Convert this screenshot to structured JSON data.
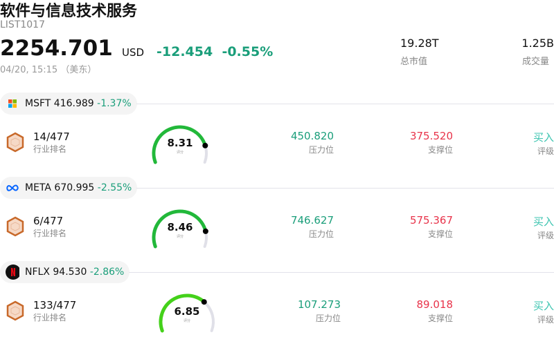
{
  "header": {
    "title": "软件与信息技术服务",
    "code": "LIST1017",
    "price": "2254.701",
    "currency": "USD",
    "change": "-12.454",
    "change_pct": "-0.55%",
    "time": "04/20, 15:15 （美东）",
    "market_cap": "19.28T",
    "market_cap_label": "总市值",
    "volume": "1.25B",
    "volume_label": "成交量"
  },
  "stocks": [
    {
      "ticker": "MSFT",
      "price": "416.989",
      "change_pct": "-1.37%",
      "logo": "microsoft-logo",
      "rank": "14/477",
      "rank_label": "行业排名",
      "score": 8.31,
      "score_text": "8.31",
      "score_label": "评分",
      "resistance": "450.820",
      "resistance_label": "压力位",
      "support": "375.520",
      "support_label": "支撑位",
      "rating": "买入",
      "rating_label": "评级",
      "gauge_color": "#22b83a"
    },
    {
      "ticker": "META",
      "price": "670.995",
      "change_pct": "-2.55%",
      "logo": "meta-logo",
      "rank": "6/477",
      "rank_label": "行业排名",
      "score": 8.46,
      "score_text": "8.46",
      "score_label": "评分",
      "resistance": "746.627",
      "resistance_label": "压力位",
      "support": "575.367",
      "support_label": "支撑位",
      "rating": "买入",
      "rating_label": "评级",
      "gauge_color": "#22b83a"
    },
    {
      "ticker": "NFLX",
      "price": "94.530",
      "change_pct": "-2.86%",
      "logo": "netflix-logo",
      "rank": "133/477",
      "rank_label": "行业排名",
      "score": 6.85,
      "score_text": "6.85",
      "score_label": "评分",
      "resistance": "107.273",
      "resistance_label": "压力位",
      "support": "89.018",
      "support_label": "支撑位",
      "rating": "买入",
      "rating_label": "评级",
      "gauge_color": "#44d11a"
    }
  ]
}
